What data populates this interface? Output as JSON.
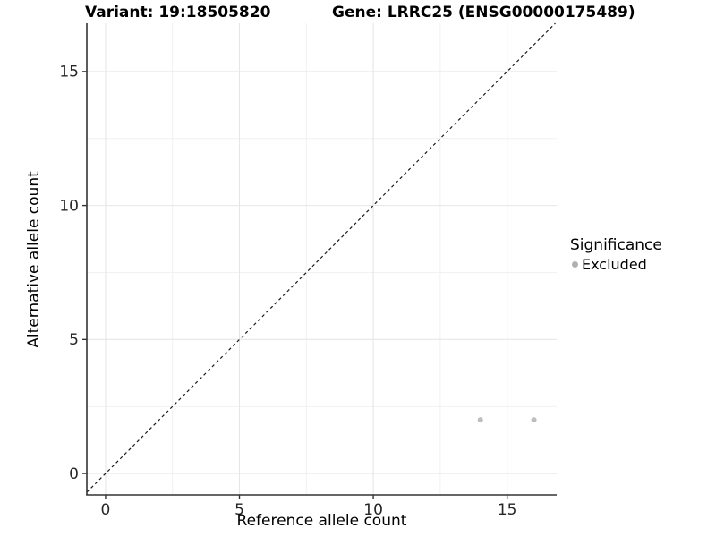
{
  "title": {
    "variant": "Variant: 19:18505820",
    "gene": "Gene: LRRC25 (ENSG00000175489)"
  },
  "axes": {
    "x_label": "Reference allele count",
    "y_label": "Alternative allele count",
    "x_tick_labels": [
      "0",
      "5",
      "10",
      "15"
    ],
    "y_tick_labels": [
      "0",
      "5",
      "10",
      "15"
    ]
  },
  "legend": {
    "title": "Significance",
    "items": [
      {
        "label": "Excluded",
        "color": "#b0b0b0"
      }
    ]
  },
  "colors": {
    "background": "#ffffff",
    "major_grid": "#e6e6e6",
    "minor_grid": "#f1f1f1",
    "axis_line": "#333333",
    "tick_mark": "#333333",
    "tick_label": "#262626",
    "point": "#bebebe",
    "reference_line": "#1a1a1a",
    "text": "#000000"
  },
  "chart_data": {
    "type": "scatter",
    "title": "Variant: 19:18505820    Gene: LRRC25 (ENSG00000175489)",
    "xlabel": "Reference allele count",
    "ylabel": "Alternative allele count",
    "xlim": [
      -0.7,
      16.85
    ],
    "ylim": [
      -0.8,
      16.8
    ],
    "x_major_ticks": [
      0,
      5,
      10,
      15
    ],
    "y_major_ticks": [
      0,
      5,
      10,
      15
    ],
    "x_minor_gridlines": [
      2.5,
      7.5,
      12.5
    ],
    "y_minor_gridlines": [
      2.5,
      7.5,
      12.5
    ],
    "grid": "on",
    "legend_position": "right",
    "series": [
      {
        "name": "Excluded",
        "type": "scatter",
        "color": "#bebebe",
        "point_radius": 3,
        "points": [
          {
            "x": 14,
            "y": 2
          },
          {
            "x": 16,
            "y": 2
          }
        ]
      }
    ],
    "reference_line": {
      "type": "identity",
      "slope": 1,
      "intercept": 0,
      "style": "dashed",
      "color": "#1a1a1a"
    }
  }
}
